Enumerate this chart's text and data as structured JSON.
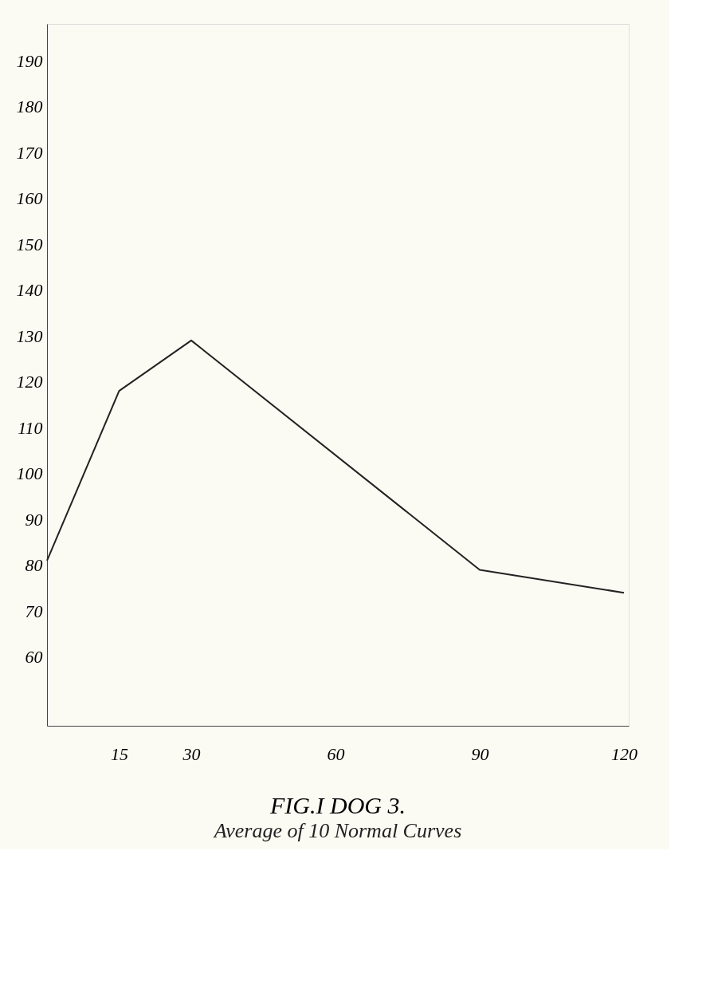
{
  "chart_data": {
    "type": "line",
    "title": "FIG.I  DOG 3.",
    "subtitle": "Average of 10 Normal Curves",
    "x": [
      0,
      15,
      30,
      90,
      120
    ],
    "series": [
      {
        "color": "#222222",
        "values": [
          81,
          118,
          129,
          79,
          74
        ]
      }
    ],
    "xlim": [
      0,
      121
    ],
    "xticks": [
      15,
      30,
      60,
      90,
      120
    ],
    "ylim": [
      45,
      198
    ],
    "yticks": [
      60,
      70,
      80,
      90,
      100,
      110,
      120,
      130,
      140,
      150,
      160,
      170,
      180,
      190
    ],
    "grid": false,
    "marker": "none",
    "line_style": "solid",
    "legend": false
  }
}
